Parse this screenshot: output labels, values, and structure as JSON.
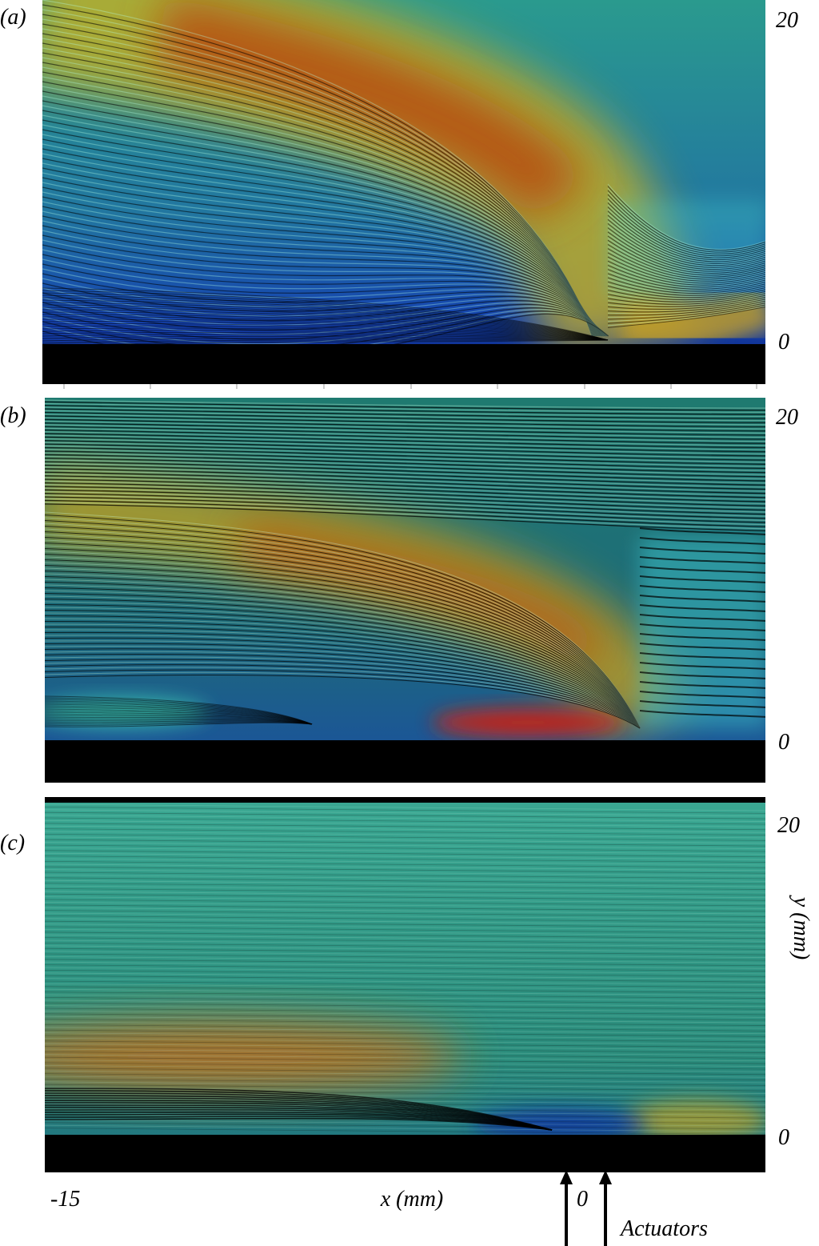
{
  "panels": [
    {
      "label": "(a)",
      "y_top": 20,
      "y_bottom": 0
    },
    {
      "label": "(b)",
      "y_top": 20,
      "y_bottom": 0
    },
    {
      "label": "(c)",
      "y_top": 20,
      "y_bottom": 0
    }
  ],
  "x_axis": {
    "left": -15,
    "label": "x (mm)",
    "zero": 0
  },
  "y_axis": {
    "label": "y (mm)"
  },
  "annotation": "Actuators"
}
